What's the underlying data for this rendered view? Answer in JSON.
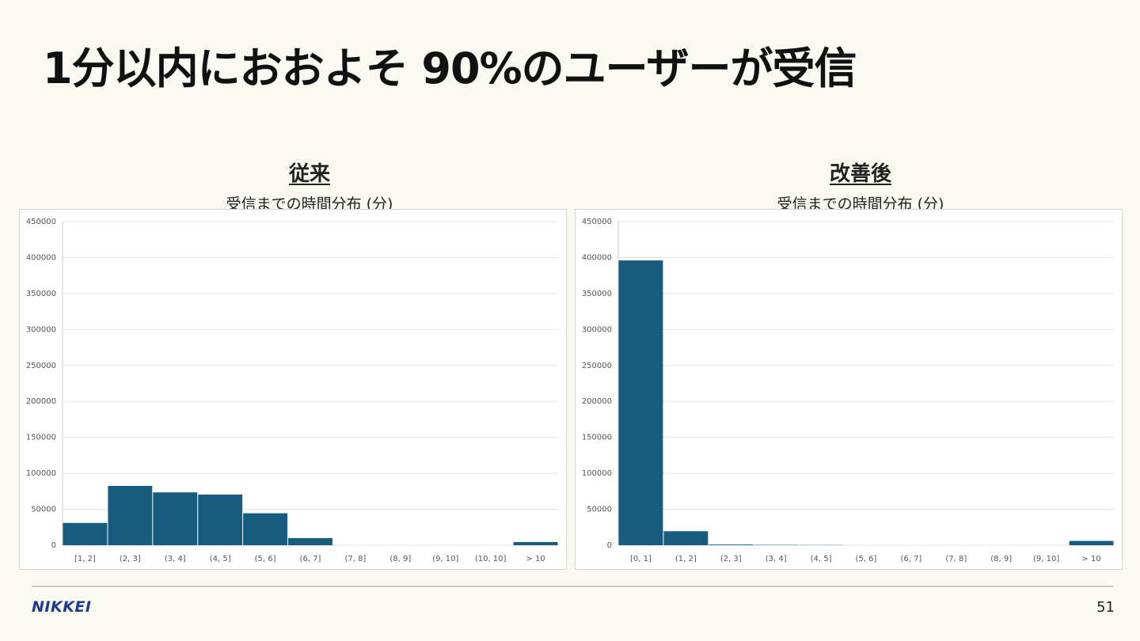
{
  "title": "1分以内におおよそ 90%のユーザーが受信",
  "footer": {
    "logo": "NIKKEI",
    "page_number": "51"
  },
  "colors": {
    "bar": "#175c7f",
    "grid": "#e3e3e3",
    "axis_text": "#555555"
  },
  "chart_data": [
    {
      "type": "bar",
      "heading": "従来",
      "title": "受信までの時間分布 (分)",
      "categories": [
        "[1, 2]",
        "(2, 3]",
        "(3, 4]",
        "(4, 5]",
        "(5, 6]",
        "(6, 7]",
        "(7, 8]",
        "(8, 9]",
        "(9, 10]",
        "(10, 10]",
        "> 10"
      ],
      "values": [
        31000,
        82500,
        73500,
        70500,
        44500,
        10000,
        0,
        0,
        0,
        0,
        4500
      ],
      "ylim": [
        0,
        450000
      ],
      "yticks": [
        0,
        50000,
        100000,
        150000,
        200000,
        250000,
        300000,
        350000,
        400000,
        450000
      ],
      "grid": true
    },
    {
      "type": "bar",
      "heading": "改善後",
      "title": "受信までの時間分布 (分)",
      "categories": [
        "[0, 1]",
        "(1, 2]",
        "(2, 3]",
        "(3, 4]",
        "(4, 5]",
        "(5, 6]",
        "(6, 7]",
        "(7, 8]",
        "(8, 9]",
        "(9, 10]",
        "> 10"
      ],
      "values": [
        396000,
        19500,
        1000,
        500,
        300,
        0,
        0,
        0,
        0,
        0,
        6000
      ],
      "ylim": [
        0,
        450000
      ],
      "yticks": [
        0,
        50000,
        100000,
        150000,
        200000,
        250000,
        300000,
        350000,
        400000,
        450000
      ],
      "grid": true
    }
  ]
}
